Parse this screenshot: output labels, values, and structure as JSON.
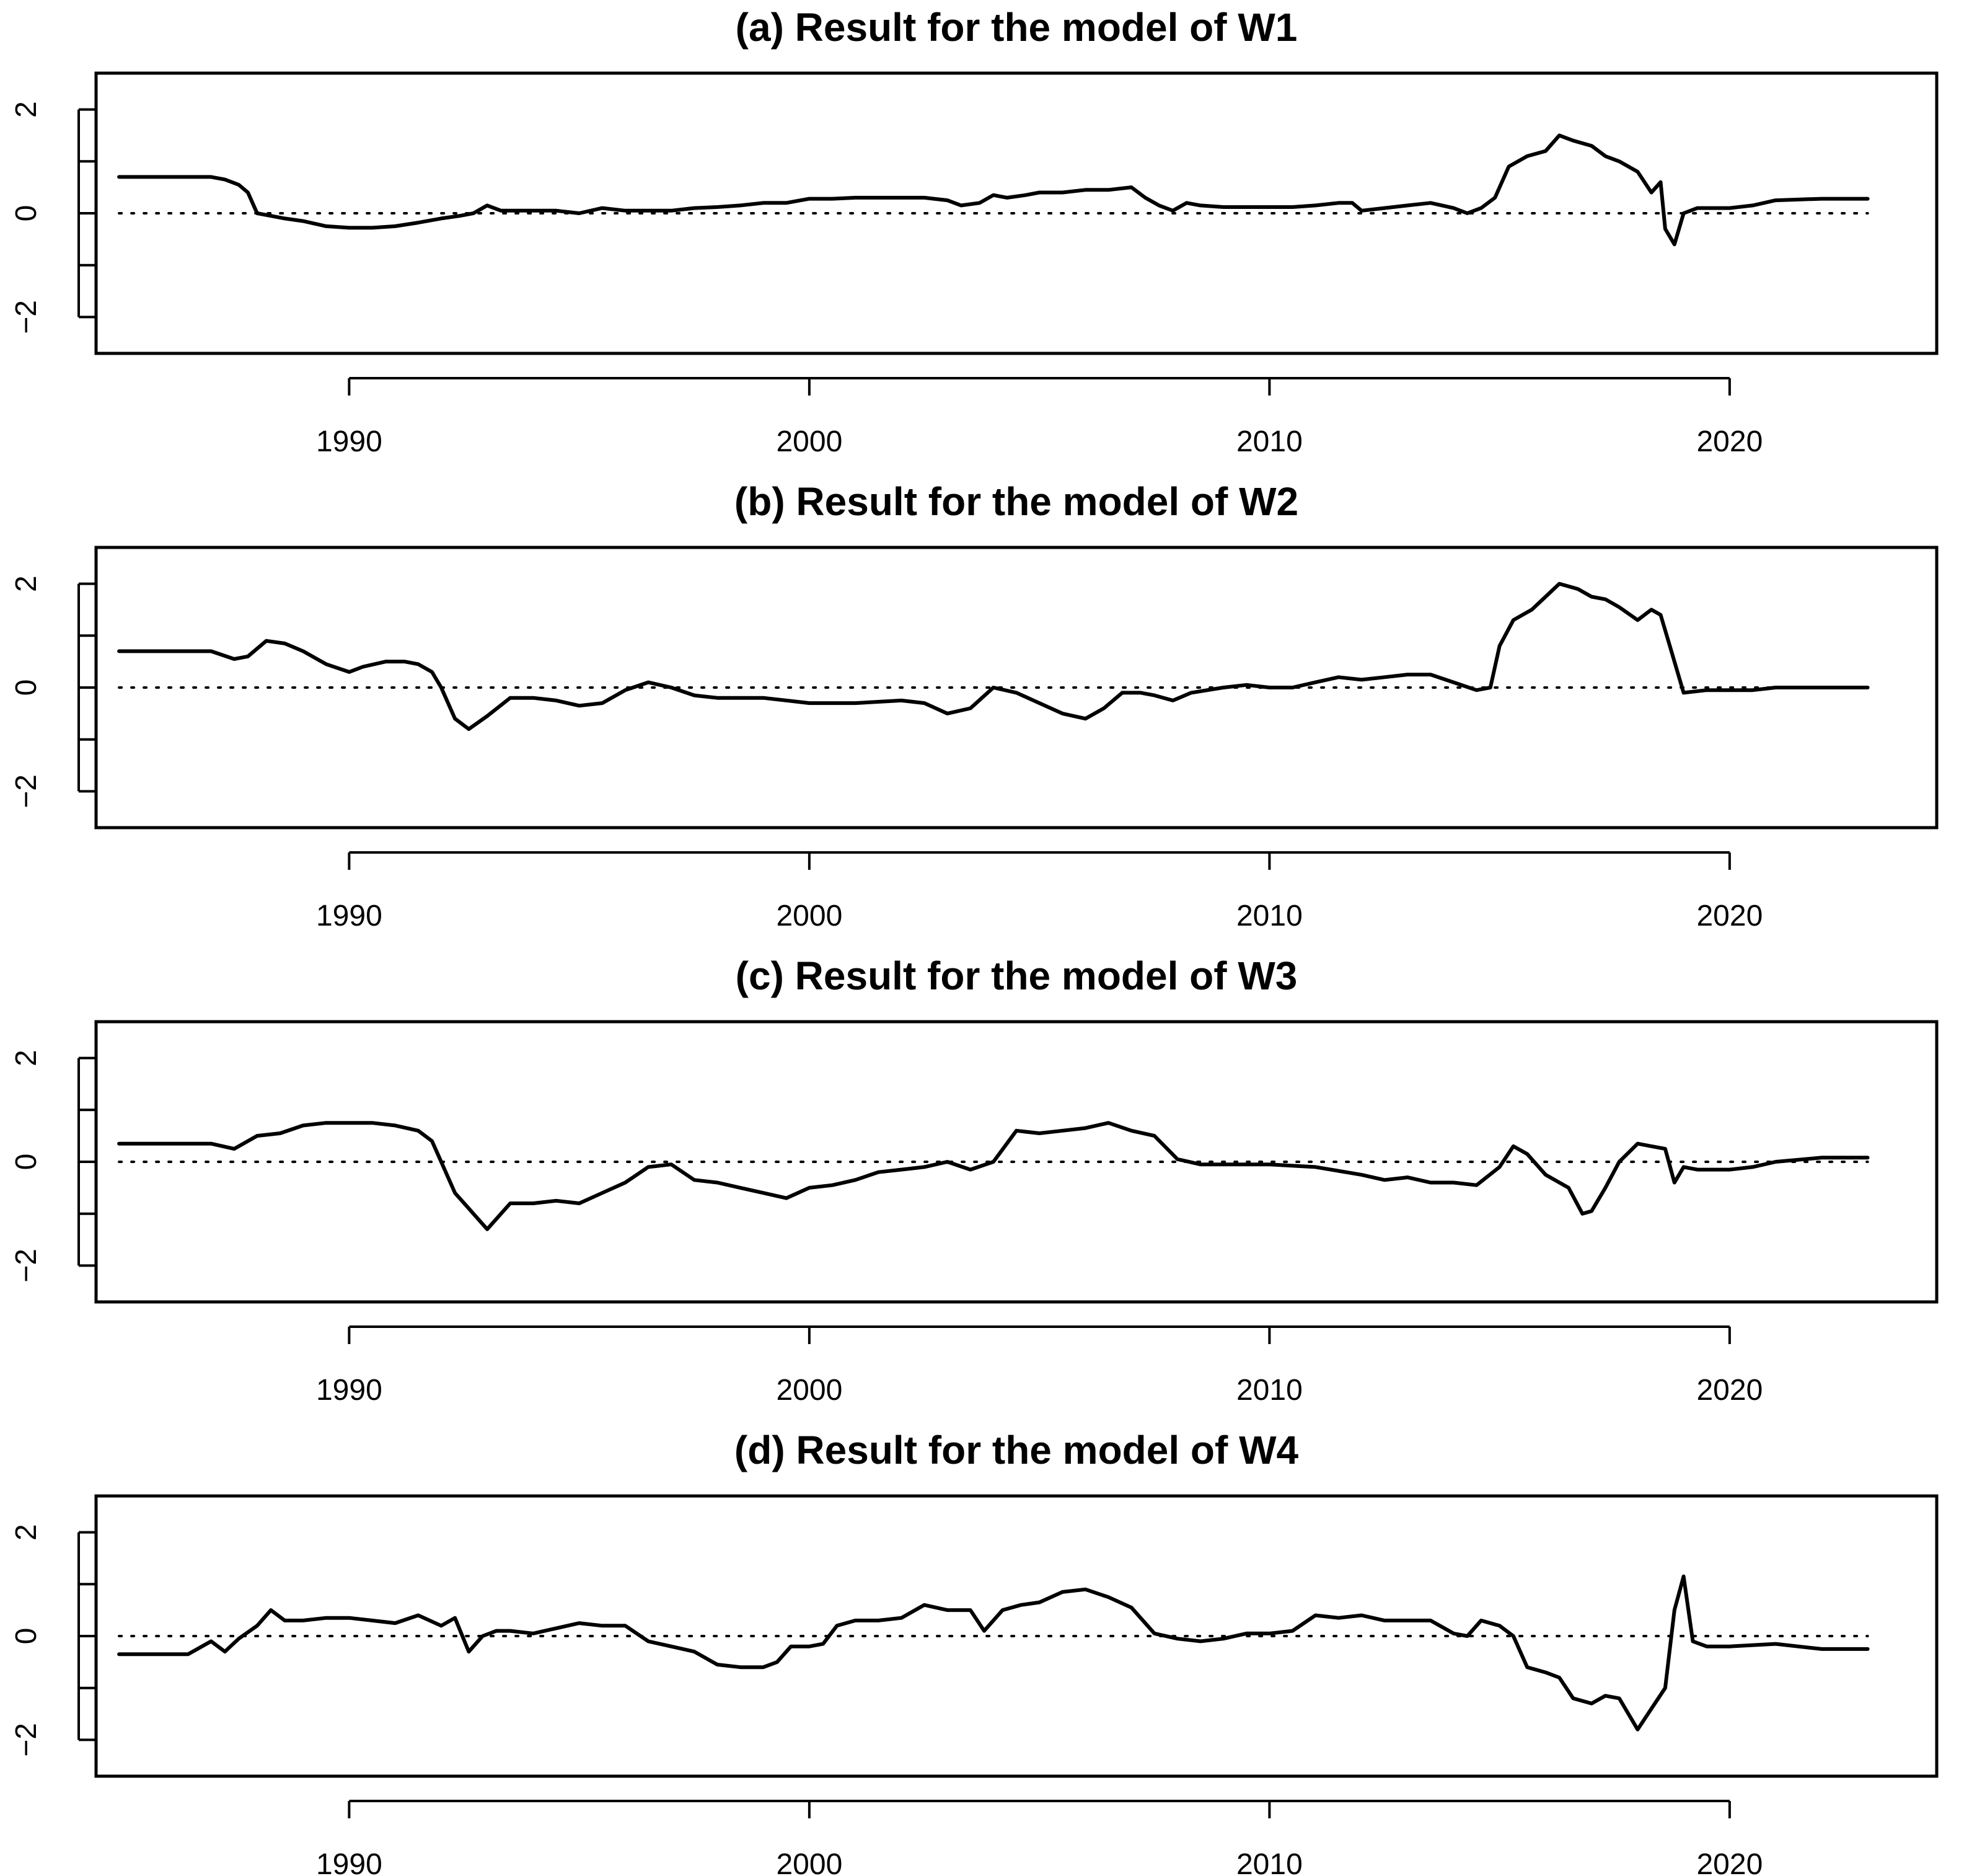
{
  "chart_data": [
    {
      "type": "line",
      "title": "(a) Result for the model of W1",
      "xlabel": "",
      "ylabel": "",
      "xlim": [
        1984.5,
        2024.5
      ],
      "ylim": [
        -2.7,
        2.7
      ],
      "x_ticks": [
        1990,
        2000,
        2010,
        2020
      ],
      "x_tick_labels": [
        "1990",
        "2000",
        "2010",
        "2020"
      ],
      "y_ticks": [
        -2,
        -1,
        0,
        1,
        2
      ],
      "y_tick_labels": [
        "−2",
        "",
        "0",
        "",
        "2"
      ],
      "reference_line": 0,
      "grid": false,
      "series": [
        {
          "x": [
            1985.0,
            1986.0,
            1987.0,
            1987.3,
            1987.6,
            1987.8,
            1988.0,
            1988.3,
            1988.6,
            1989.0,
            1989.5,
            1990.0,
            1990.5,
            1991.0,
            1991.5,
            1992.0,
            1992.4,
            1992.7,
            1993.0,
            1993.3,
            1993.6,
            1994.0,
            1994.5,
            1995.0,
            1995.5,
            1996.0,
            1996.5,
            1997.0,
            1997.5,
            1998.0,
            1998.5,
            1999.0,
            1999.5,
            2000.0,
            2000.5,
            2001.0,
            2001.5,
            2002.0,
            2002.5,
            2003.0,
            2003.3,
            2003.7,
            2004.0,
            2004.3,
            2004.7,
            2005.0,
            2005.5,
            2006.0,
            2006.5,
            2007.0,
            2007.3,
            2007.6,
            2007.9,
            2008.2,
            2008.5,
            2009.0,
            2009.5,
            2010.0,
            2010.5,
            2011.0,
            2011.5,
            2011.8,
            2012.0,
            2012.5,
            2013.0,
            2013.5,
            2014.0,
            2014.3,
            2014.6,
            2014.9,
            2015.2,
            2015.6,
            2016.0,
            2016.3,
            2016.6,
            2017.0,
            2017.3,
            2017.6,
            2018.0,
            2018.3,
            2018.5,
            2018.6,
            2018.8,
            2019.0,
            2019.3,
            2019.6,
            2020.0,
            2020.5,
            2021.0,
            2022.0,
            2023.0
          ],
          "y": [
            0.7,
            0.7,
            0.7,
            0.65,
            0.55,
            0.4,
            0.0,
            -0.05,
            -0.1,
            -0.15,
            -0.25,
            -0.28,
            -0.28,
            -0.25,
            -0.18,
            -0.1,
            -0.05,
            0.0,
            0.15,
            0.05,
            0.05,
            0.05,
            0.05,
            0.0,
            0.1,
            0.05,
            0.05,
            0.05,
            0.1,
            0.12,
            0.15,
            0.2,
            0.2,
            0.28,
            0.28,
            0.3,
            0.3,
            0.3,
            0.3,
            0.25,
            0.15,
            0.2,
            0.35,
            0.3,
            0.35,
            0.4,
            0.4,
            0.45,
            0.45,
            0.5,
            0.3,
            0.15,
            0.05,
            0.2,
            0.15,
            0.12,
            0.12,
            0.12,
            0.12,
            0.15,
            0.2,
            0.2,
            0.05,
            0.1,
            0.15,
            0.2,
            0.1,
            0.0,
            0.1,
            0.3,
            0.9,
            1.1,
            1.2,
            1.5,
            1.4,
            1.3,
            1.1,
            1.0,
            0.8,
            0.4,
            0.6,
            -0.3,
            -0.6,
            0.0,
            0.1,
            0.1,
            0.1,
            0.15,
            0.25,
            0.28,
            0.28
          ]
        }
      ]
    },
    {
      "type": "line",
      "title": "(b) Result for the model of W2",
      "xlabel": "",
      "ylabel": "",
      "xlim": [
        1984.5,
        2024.5
      ],
      "ylim": [
        -2.7,
        2.7
      ],
      "x_ticks": [
        1990,
        2000,
        2010,
        2020
      ],
      "x_tick_labels": [
        "1990",
        "2000",
        "2010",
        "2020"
      ],
      "y_ticks": [
        -2,
        -1,
        0,
        1,
        2
      ],
      "y_tick_labels": [
        "−2",
        "",
        "0",
        "",
        "2"
      ],
      "reference_line": 0,
      "grid": false,
      "series": [
        {
          "x": [
            1985.0,
            1986.0,
            1987.0,
            1987.5,
            1987.8,
            1988.2,
            1988.6,
            1989.0,
            1989.5,
            1990.0,
            1990.3,
            1990.8,
            1991.2,
            1991.5,
            1991.8,
            1992.0,
            1992.3,
            1992.6,
            1993.0,
            1993.5,
            1994.0,
            1994.5,
            1995.0,
            1995.5,
            1996.0,
            1996.5,
            1997.0,
            1997.5,
            1998.0,
            1999.0,
            2000.0,
            2001.0,
            2002.0,
            2002.5,
            2003.0,
            2003.5,
            2004.0,
            2004.5,
            2005.0,
            2005.5,
            2006.0,
            2006.4,
            2006.8,
            2007.2,
            2007.5,
            2007.9,
            2008.3,
            2009.0,
            2009.5,
            2010.0,
            2010.5,
            2011.0,
            2011.5,
            2012.0,
            2012.5,
            2013.0,
            2013.5,
            2014.0,
            2014.5,
            2014.8,
            2015.0,
            2015.3,
            2015.7,
            2016.0,
            2016.3,
            2016.7,
            2017.0,
            2017.3,
            2017.6,
            2018.0,
            2018.3,
            2018.5,
            2018.7,
            2019.0,
            2019.5,
            2020.0,
            2020.5,
            2021.0,
            2022.0,
            2023.0
          ],
          "y": [
            0.7,
            0.7,
            0.7,
            0.55,
            0.6,
            0.9,
            0.85,
            0.7,
            0.45,
            0.3,
            0.4,
            0.5,
            0.5,
            0.45,
            0.3,
            0.0,
            -0.6,
            -0.8,
            -0.55,
            -0.2,
            -0.2,
            -0.25,
            -0.35,
            -0.3,
            -0.05,
            0.1,
            0.0,
            -0.15,
            -0.2,
            -0.2,
            -0.3,
            -0.3,
            -0.25,
            -0.3,
            -0.5,
            -0.4,
            0.0,
            -0.1,
            -0.3,
            -0.5,
            -0.6,
            -0.4,
            -0.1,
            -0.1,
            -0.15,
            -0.25,
            -0.1,
            0.0,
            0.05,
            0.0,
            0.0,
            0.1,
            0.2,
            0.15,
            0.2,
            0.25,
            0.25,
            0.1,
            -0.05,
            0.0,
            0.8,
            1.3,
            1.5,
            1.75,
            2.0,
            1.9,
            1.75,
            1.7,
            1.55,
            1.3,
            1.5,
            1.4,
            0.8,
            -0.1,
            -0.05,
            -0.05,
            -0.05,
            0.0,
            0.0,
            0.0
          ]
        }
      ]
    },
    {
      "type": "line",
      "title": "(c) Result for the model of W3",
      "xlabel": "",
      "ylabel": "",
      "xlim": [
        1984.5,
        2024.5
      ],
      "ylim": [
        -2.7,
        2.7
      ],
      "x_ticks": [
        1990,
        2000,
        2010,
        2020
      ],
      "x_tick_labels": [
        "1990",
        "2000",
        "2010",
        "2020"
      ],
      "y_ticks": [
        -2,
        -1,
        0,
        1,
        2
      ],
      "y_tick_labels": [
        "−2",
        "",
        "0",
        "",
        "2"
      ],
      "reference_line": 0,
      "grid": false,
      "series": [
        {
          "x": [
            1985.0,
            1986.0,
            1987.0,
            1987.5,
            1988.0,
            1988.5,
            1989.0,
            1989.5,
            1990.0,
            1990.5,
            1991.0,
            1991.5,
            1991.8,
            1992.0,
            1992.3,
            1992.6,
            1993.0,
            1993.5,
            1994.0,
            1994.5,
            1995.0,
            1995.5,
            1996.0,
            1996.5,
            1997.0,
            1997.5,
            1998.0,
            1998.5,
            1999.0,
            1999.5,
            2000.0,
            2000.5,
            2001.0,
            2001.5,
            2002.0,
            2002.5,
            2003.0,
            2003.5,
            2004.0,
            2004.5,
            2005.0,
            2005.5,
            2006.0,
            2006.5,
            2007.0,
            2007.5,
            2008.0,
            2008.5,
            2009.0,
            2010.0,
            2011.0,
            2012.0,
            2012.5,
            2013.0,
            2013.5,
            2014.0,
            2014.5,
            2015.0,
            2015.3,
            2015.6,
            2016.0,
            2016.5,
            2016.8,
            2017.0,
            2017.3,
            2017.6,
            2018.0,
            2018.3,
            2018.6,
            2018.8,
            2019.0,
            2019.3,
            2019.6,
            2020.0,
            2020.5,
            2021.0,
            2022.0,
            2023.0
          ],
          "y": [
            0.35,
            0.35,
            0.35,
            0.25,
            0.5,
            0.55,
            0.7,
            0.75,
            0.75,
            0.75,
            0.7,
            0.6,
            0.4,
            0.0,
            -0.6,
            -0.9,
            -1.3,
            -0.8,
            -0.8,
            -0.75,
            -0.8,
            -0.6,
            -0.4,
            -0.1,
            -0.05,
            -0.35,
            -0.4,
            -0.5,
            -0.6,
            -0.7,
            -0.5,
            -0.45,
            -0.35,
            -0.2,
            -0.15,
            -0.1,
            0.0,
            -0.15,
            0.0,
            0.6,
            0.55,
            0.6,
            0.65,
            0.75,
            0.6,
            0.5,
            0.05,
            -0.05,
            -0.05,
            -0.05,
            -0.1,
            -0.25,
            -0.35,
            -0.3,
            -0.4,
            -0.4,
            -0.45,
            -0.1,
            0.3,
            0.15,
            -0.25,
            -0.5,
            -1.0,
            -0.95,
            -0.5,
            0.0,
            0.35,
            0.3,
            0.25,
            -0.4,
            -0.1,
            -0.15,
            -0.15,
            -0.15,
            -0.1,
            0.0,
            0.08,
            0.08
          ]
        }
      ]
    },
    {
      "type": "line",
      "title": "(d) Result for the model of W4",
      "xlabel": "",
      "ylabel": "",
      "xlim": [
        1984.5,
        2024.5
      ],
      "ylim": [
        -2.7,
        2.7
      ],
      "x_ticks": [
        1990,
        2000,
        2010,
        2020
      ],
      "x_tick_labels": [
        "1990",
        "2000",
        "2010",
        "2020"
      ],
      "y_ticks": [
        -2,
        -1,
        0,
        1,
        2
      ],
      "y_tick_labels": [
        "−2",
        "",
        "0",
        "",
        "2"
      ],
      "reference_line": 0,
      "grid": false,
      "series": [
        {
          "x": [
            1985.0,
            1986.0,
            1986.5,
            1987.0,
            1987.3,
            1987.6,
            1988.0,
            1988.3,
            1988.6,
            1989.0,
            1989.5,
            1990.0,
            1990.5,
            1991.0,
            1991.5,
            1992.0,
            1992.3,
            1992.6,
            1992.9,
            1993.2,
            1993.5,
            1994.0,
            1994.5,
            1995.0,
            1995.5,
            1996.0,
            1996.5,
            1997.0,
            1997.5,
            1998.0,
            1998.5,
            1999.0,
            1999.3,
            1999.6,
            2000.0,
            2000.3,
            2000.6,
            2001.0,
            2001.5,
            2002.0,
            2002.5,
            2003.0,
            2003.5,
            2003.8,
            2004.2,
            2004.6,
            2005.0,
            2005.5,
            2006.0,
            2006.5,
            2007.0,
            2007.5,
            2008.0,
            2008.5,
            2009.0,
            2009.5,
            2010.0,
            2010.5,
            2011.0,
            2011.5,
            2012.0,
            2012.5,
            2013.0,
            2013.5,
            2014.0,
            2014.3,
            2014.6,
            2015.0,
            2015.3,
            2015.6,
            2016.0,
            2016.3,
            2016.6,
            2017.0,
            2017.3,
            2017.6,
            2018.0,
            2018.3,
            2018.6,
            2018.8,
            2019.0,
            2019.2,
            2019.5,
            2020.0,
            2021.0,
            2022.0,
            2023.0
          ],
          "y": [
            -0.35,
            -0.35,
            -0.35,
            -0.1,
            -0.3,
            -0.05,
            0.2,
            0.5,
            0.3,
            0.3,
            0.35,
            0.35,
            0.3,
            0.25,
            0.4,
            0.2,
            0.35,
            -0.3,
            0.0,
            0.1,
            0.1,
            0.05,
            0.15,
            0.25,
            0.2,
            0.2,
            -0.1,
            -0.2,
            -0.3,
            -0.55,
            -0.6,
            -0.6,
            -0.5,
            -0.2,
            -0.2,
            -0.15,
            0.2,
            0.3,
            0.3,
            0.35,
            0.6,
            0.5,
            0.5,
            0.1,
            0.5,
            0.6,
            0.65,
            0.85,
            0.9,
            0.75,
            0.55,
            0.05,
            -0.05,
            -0.1,
            -0.05,
            0.05,
            0.05,
            0.1,
            0.4,
            0.35,
            0.4,
            0.3,
            0.3,
            0.3,
            0.05,
            0.0,
            0.3,
            0.2,
            0.0,
            -0.6,
            -0.7,
            -0.8,
            -1.2,
            -1.3,
            -1.15,
            -1.2,
            -1.8,
            -1.4,
            -1.0,
            0.5,
            1.15,
            -0.1,
            -0.2,
            -0.2,
            -0.15,
            -0.25,
            -0.25
          ]
        }
      ]
    }
  ]
}
